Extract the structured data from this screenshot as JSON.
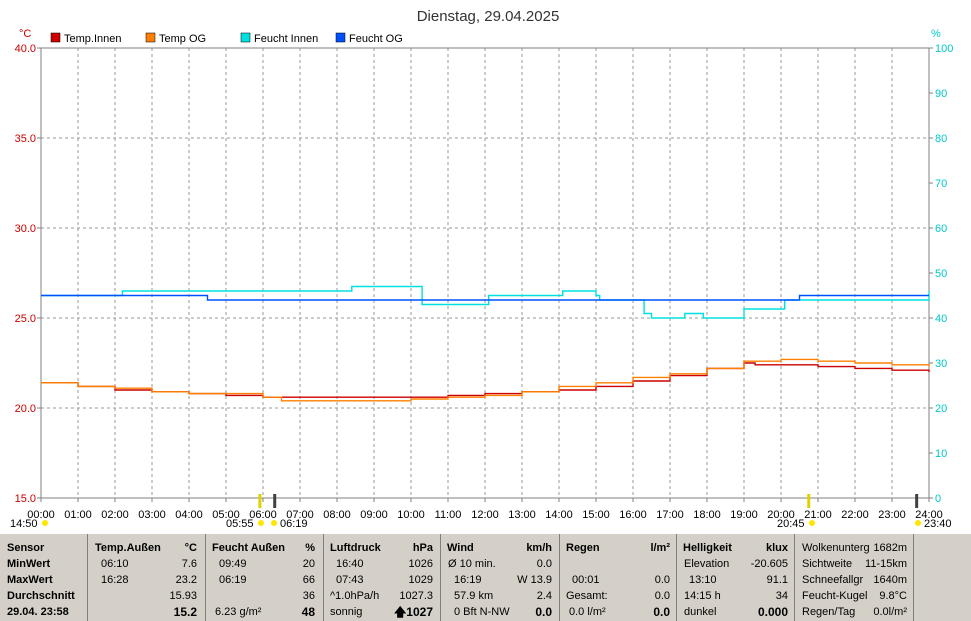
{
  "chart_data": {
    "type": "line",
    "title": "Dienstag, 29.04.2025",
    "y_left_unit": "°C",
    "y_right_unit": "%",
    "ylim_left": [
      15,
      40
    ],
    "ylim_right": [
      0,
      100
    ],
    "y_left_ticks": [
      "15.0",
      "20.0",
      "25.0",
      "30.0",
      "35.0",
      "40.0"
    ],
    "y_right_ticks": [
      "0",
      "10",
      "20",
      "30",
      "40",
      "50",
      "60",
      "70",
      "80",
      "90",
      "100"
    ],
    "x_ticks": [
      "00:00",
      "01:00",
      "02:00",
      "03:00",
      "04:00",
      "05:00",
      "06:00",
      "07:00",
      "08:00",
      "09:00",
      "10:00",
      "11:00",
      "12:00",
      "13:00",
      "14:00",
      "15:00",
      "16:00",
      "17:00",
      "18:00",
      "19:00",
      "20:00",
      "21:00",
      "22:00",
      "23:00",
      "24:00"
    ],
    "grid": true,
    "legend_position": "top-left",
    "series": [
      {
        "name": "Temp.Innen",
        "color": "#cc0000",
        "axis": "left",
        "x": [
          0,
          1,
          2,
          3,
          4,
          5,
          5.7,
          6,
          6.5,
          7,
          8,
          9,
          10,
          11,
          12,
          13,
          14,
          15,
          16,
          17,
          18,
          19,
          19.3,
          20,
          21,
          22,
          23,
          24
        ],
        "y": [
          21.4,
          21.2,
          21.0,
          20.9,
          20.8,
          20.7,
          20.7,
          20.6,
          20.6,
          20.6,
          20.6,
          20.6,
          20.6,
          20.7,
          20.8,
          20.9,
          21.0,
          21.2,
          21.5,
          21.8,
          22.2,
          22.5,
          22.4,
          22.4,
          22.3,
          22.2,
          22.1,
          22.0
        ]
      },
      {
        "name": "Temp OG",
        "color": "#ff8000",
        "axis": "left",
        "x": [
          0,
          1,
          2,
          3,
          4,
          5,
          6,
          6.5,
          7,
          8,
          9,
          10,
          11,
          12,
          13,
          14,
          15,
          16,
          17,
          18,
          19,
          20,
          21,
          22,
          23,
          24
        ],
        "y": [
          21.4,
          21.2,
          21.1,
          20.9,
          20.8,
          20.8,
          20.6,
          20.4,
          20.4,
          20.4,
          20.4,
          20.5,
          20.6,
          20.7,
          20.9,
          21.2,
          21.4,
          21.7,
          21.9,
          22.2,
          22.6,
          22.7,
          22.6,
          22.5,
          22.4,
          22.3
        ]
      },
      {
        "name": "Feucht Innen",
        "color": "#00e0e0",
        "axis": "right",
        "x": [
          0,
          2.1,
          2.2,
          8.3,
          8.4,
          10.1,
          10.3,
          11.0,
          12.0,
          12.1,
          14.0,
          14.1,
          15.0,
          15.1,
          16.0,
          16.3,
          16.5,
          17.2,
          17.4,
          17.9,
          18.0,
          19.0,
          20.0,
          20.1,
          24.0
        ],
        "y": [
          45,
          45,
          46,
          46,
          47,
          47,
          43,
          43,
          43,
          45,
          45,
          46,
          45,
          44,
          44,
          41,
          40,
          40,
          41,
          40,
          40,
          42,
          42,
          44,
          46
        ]
      },
      {
        "name": "Feucht OG",
        "color": "#0050ff",
        "axis": "right",
        "x": [
          0,
          2.1,
          2.2,
          4.4,
          4.5,
          10.0,
          10.5,
          11.0,
          12.0,
          12.2,
          15.0,
          16.0,
          20.0,
          20.5,
          21.0,
          24.0
        ],
        "y": [
          45,
          45,
          45,
          45,
          44,
          44,
          44,
          44,
          44,
          44,
          44,
          44,
          44,
          45,
          45,
          45
        ]
      }
    ],
    "sun_markers": [
      "14:50",
      "05:55",
      "06:19",
      "20:45",
      "23:40"
    ]
  },
  "panel": {
    "sensor": {
      "header": "Sensor",
      "min": "MinWert",
      "max": "MaxWert",
      "avg": "Durchschnitt",
      "date": "29.04. 23:58"
    },
    "temp": {
      "header": "Temp.Außen",
      "unit": "°C",
      "min_time": "06:10",
      "min_val": "7.6",
      "max_time": "16:28",
      "max_val": "23.2",
      "avg": "15.93",
      "current": "15.2"
    },
    "humid": {
      "header": "Feucht Außen",
      "unit": "%",
      "min_time": "09:49",
      "min_val": "20",
      "max_time": "06:19",
      "max_val": "66",
      "avg": "36",
      "abs": "6.23 g/m²",
      "current": "48"
    },
    "pressure": {
      "header": "Luftdruck",
      "unit": "hPa",
      "min_time": "16:40",
      "min_val": "1026",
      "max_time": "07:43",
      "max_val": "1029",
      "trend_label": "^1.0hPa/h",
      "trend_val": "1027.3",
      "forecast": "sonnig",
      "current": "1027"
    },
    "wind": {
      "header": "Wind",
      "unit": "km/h",
      "avg_label": "Ø 10 min.",
      "avg_val": "0.0",
      "max_time": "16:19",
      "max_val": "W 13.9",
      "run_label": "57.9 km",
      "run_val": "2.4",
      "beaufort": "0 Bft N-NW",
      "current": "0.0"
    },
    "rain": {
      "header": "Regen",
      "unit": "l/m²",
      "time": "00:01",
      "time_val": "0.0",
      "total_label": "Gesamt:",
      "total_val": "0.0",
      "rate": "0.0 l/m²",
      "current": "0.0"
    },
    "light": {
      "header": "Helligkeit",
      "unit": "klux",
      "elev_label": "Elevation",
      "elev_val": "-20.605",
      "max_time": "13:10",
      "max_val": "91.1",
      "dur_label": "14:15 h",
      "dur_val": "34",
      "state": "dunkel",
      "current": "0.000"
    },
    "extra": {
      "cloud_label": "Wolkenunterg",
      "cloud_val": "1682m",
      "vis_label": "Sichtweite",
      "vis_val": "11-15km",
      "snow_label": "Schneefallgr",
      "snow_val": "1640m",
      "wet_label": "Feucht-Kugel",
      "wet_val": "9.8°C",
      "rainday_label": "Regen/Tag",
      "rainday_val": "0.0l/m²"
    }
  }
}
